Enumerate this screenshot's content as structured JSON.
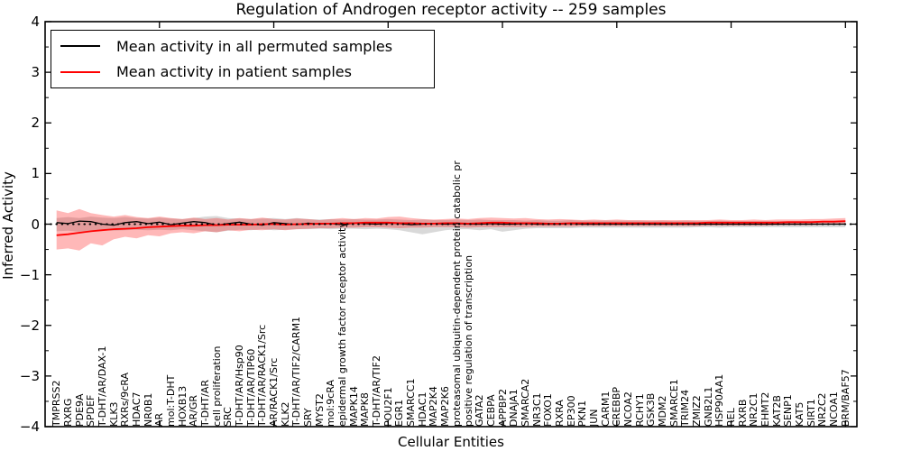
{
  "chart": {
    "title": "Regulation of Androgen receptor activity -- 259 samples",
    "xlabel": "Cellular Entities",
    "ylabel": "Inferred Activity"
  },
  "legend": {
    "items": [
      {
        "label": "Mean activity in all permuted samples",
        "color": "#000000"
      },
      {
        "label": "Mean activity in patient samples",
        "color": "#ff0000"
      }
    ]
  },
  "chart_data": {
    "type": "line",
    "title": "Regulation of Androgen receptor activity -- 259 samples",
    "xlabel": "Cellular Entities",
    "ylabel": "Inferred Activity",
    "ylim": [
      -4,
      4
    ],
    "xlim": [
      0,
      71
    ],
    "ytick_values": [
      4,
      3,
      2,
      1,
      0,
      -1,
      -2,
      -3,
      -4
    ],
    "ytick_labels": [
      "4",
      "3",
      "2",
      "1",
      "0",
      "−1",
      "−2",
      "−3",
      "−4"
    ],
    "xtick_positions": [
      10,
      20,
      30,
      40,
      50,
      60,
      70
    ],
    "zero_line": true,
    "legend_position": "upper left",
    "grid": false,
    "categories": [
      "TMPRSS2",
      "RXRG",
      "PDE9A",
      "SPDEF",
      "T-DHT/AR/DAX-1",
      "KLK3",
      "RXRs/9cRA",
      "HDAC7",
      "NR0B1",
      "AR",
      "mol:T-DHT",
      "HOXB13",
      "AR/GR",
      "T-DHT/AR",
      "cell proliferation",
      "SRC",
      "T-DHT/AR/Hsp90",
      "T-DHT/AR/TIP60",
      "T-DHT/AR/RACK1/Src",
      "AR/RACK1/Src",
      "KLK2",
      "T-DHT/AR/TIF2/CARM1",
      "SRY",
      "MYST2",
      "mol:9cRA",
      "epidermal growth factor receptor activity",
      "MAPK14",
      "MAPK8",
      "T-DHT/AR/TIF2",
      "POU2F1",
      "EGR1",
      "SMARCC1",
      "HDAC1",
      "MAP2K4",
      "MAP2K6",
      "proteasomal ubiquitin-dependent protein catabolic pr",
      "positive regulation of transcription",
      "GATA2",
      "CEBPA",
      "APPBP2",
      "DNAJA1",
      "SMARCA2",
      "NR3C1",
      "FOXO1",
      "RXRA",
      "EP300",
      "PKN1",
      "JUN",
      "CARM1",
      "CREBBP",
      "NCOA2",
      "RCHY1",
      "GSK3B",
      "MDM2",
      "SMARCE1",
      "TRIM24",
      "ZMIZ2",
      "GNB2L1",
      "HSP90AA1",
      "REL",
      "RXRB",
      "NR2C1",
      "EHMT2",
      "KAT2B",
      "SENP1",
      "KAT5",
      "SIRT1",
      "NR2C2",
      "NCOA1",
      "BRM/BAF57"
    ],
    "series": [
      {
        "name": "Mean activity in all permuted samples",
        "color": "#000000",
        "width": 1.3,
        "values": [
          0.03,
          0.01,
          0.06,
          0.05,
          0.0,
          -0.02,
          0.03,
          0.05,
          0.01,
          0.04,
          -0.01,
          0.02,
          0.05,
          0.03,
          -0.02,
          0.01,
          0.04,
          0.0,
          -0.02,
          0.03,
          0.01,
          -0.01,
          0.02,
          0.0,
          0.01,
          -0.01,
          0.02,
          0.01,
          0.0,
          0.02,
          0.01,
          -0.01,
          0.0,
          0.01,
          0.0,
          0.01,
          0.0,
          0.0,
          0.01,
          0.0,
          0.0,
          0.01,
          0.0,
          0.0,
          0.0,
          0.01,
          0.0,
          0.0,
          0.0,
          0.0,
          0.0,
          0.0,
          0.0,
          0.0,
          0.0,
          0.0,
          0.0,
          0.0,
          0.0,
          0.0,
          0.0,
          0.0,
          0.0,
          0.0,
          0.0,
          0.0,
          0.0,
          0.0,
          0.0,
          0.0
        ]
      },
      {
        "name": "Mean activity in patient samples",
        "color": "#ff0000",
        "width": 1.8,
        "values": [
          -0.22,
          -0.2,
          -0.17,
          -0.14,
          -0.12,
          -0.1,
          -0.09,
          -0.08,
          -0.06,
          -0.05,
          -0.04,
          -0.03,
          -0.03,
          -0.02,
          -0.02,
          -0.01,
          -0.01,
          -0.01,
          0.0,
          0.0,
          -0.01,
          0.0,
          0.0,
          0.01,
          0.01,
          0.02,
          0.02,
          0.03,
          0.03,
          0.03,
          0.02,
          0.02,
          0.01,
          0.01,
          0.02,
          0.02,
          0.01,
          0.02,
          0.03,
          0.03,
          0.02,
          0.02,
          0.02,
          0.01,
          0.01,
          0.02,
          0.02,
          0.02,
          0.02,
          0.02,
          0.02,
          0.02,
          0.02,
          0.02,
          0.02,
          0.02,
          0.02,
          0.03,
          0.03,
          0.03,
          0.03,
          0.03,
          0.03,
          0.03,
          0.04,
          0.04,
          0.04,
          0.05,
          0.05,
          0.06
        ]
      }
    ],
    "bands": [
      {
        "name": "permuted-samples-range",
        "color": "rgba(120,120,120,0.28)",
        "upper": [
          0.12,
          0.14,
          0.12,
          0.15,
          0.13,
          0.12,
          0.14,
          0.12,
          0.11,
          0.13,
          0.11,
          0.1,
          0.12,
          0.15,
          0.16,
          0.12,
          0.11,
          0.1,
          0.11,
          0.12,
          0.1,
          0.12,
          0.1,
          0.09,
          0.1,
          0.09,
          0.1,
          0.09,
          0.09,
          0.1,
          0.09,
          0.08,
          0.09,
          0.08,
          0.08,
          0.09,
          0.08,
          0.09,
          0.08,
          0.08,
          0.08,
          0.07,
          0.08,
          0.07,
          0.07,
          0.08,
          0.07,
          0.07,
          0.07,
          0.07,
          0.07,
          0.07,
          0.06,
          0.07,
          0.06,
          0.07,
          0.06,
          0.06,
          0.07,
          0.06,
          0.06,
          0.06,
          0.06,
          0.06,
          0.06,
          0.06,
          0.06,
          0.06,
          0.06,
          0.06
        ],
        "lower": [
          -0.14,
          -0.13,
          -0.15,
          -0.13,
          -0.12,
          -0.13,
          -0.12,
          -0.11,
          -0.12,
          -0.11,
          -0.12,
          -0.1,
          -0.12,
          -0.14,
          -0.16,
          -0.13,
          -0.11,
          -0.12,
          -0.1,
          -0.12,
          -0.11,
          -0.1,
          -0.1,
          -0.09,
          -0.1,
          -0.09,
          -0.09,
          -0.1,
          -0.09,
          -0.1,
          -0.12,
          -0.16,
          -0.2,
          -0.16,
          -0.12,
          -0.1,
          -0.1,
          -0.12,
          -0.1,
          -0.15,
          -0.12,
          -0.09,
          -0.08,
          -0.08,
          -0.08,
          -0.08,
          -0.07,
          -0.07,
          -0.07,
          -0.07,
          -0.07,
          -0.07,
          -0.07,
          -0.07,
          -0.07,
          -0.07,
          -0.06,
          -0.06,
          -0.07,
          -0.06,
          -0.06,
          -0.06,
          -0.06,
          -0.06,
          -0.06,
          -0.06,
          -0.06,
          -0.06,
          -0.06,
          -0.06
        ]
      },
      {
        "name": "patient-samples-range",
        "color": "rgba(255,0,0,0.28)",
        "upper": [
          0.27,
          0.22,
          0.3,
          0.22,
          0.18,
          0.15,
          0.18,
          0.14,
          0.12,
          0.15,
          0.12,
          0.1,
          0.13,
          0.1,
          0.12,
          0.09,
          0.12,
          0.1,
          0.13,
          0.1,
          0.09,
          0.11,
          0.1,
          0.08,
          0.1,
          0.12,
          0.1,
          0.12,
          0.11,
          0.14,
          0.15,
          0.12,
          0.1,
          0.09,
          0.1,
          0.11,
          0.1,
          0.12,
          0.13,
          0.12,
          0.11,
          0.12,
          0.1,
          0.09,
          0.1,
          0.09,
          0.08,
          0.09,
          0.08,
          0.09,
          0.08,
          0.08,
          0.08,
          0.08,
          0.08,
          0.08,
          0.08,
          0.08,
          0.09,
          0.08,
          0.08,
          0.09,
          0.08,
          0.09,
          0.09,
          0.09,
          0.1,
          0.1,
          0.11,
          0.12
        ],
        "lower": [
          -0.5,
          -0.48,
          -0.52,
          -0.38,
          -0.42,
          -0.3,
          -0.25,
          -0.28,
          -0.22,
          -0.24,
          -0.18,
          -0.16,
          -0.18,
          -0.14,
          -0.16,
          -0.12,
          -0.14,
          -0.11,
          -0.12,
          -0.1,
          -0.12,
          -0.1,
          -0.09,
          -0.08,
          -0.08,
          -0.07,
          -0.07,
          -0.06,
          -0.06,
          -0.07,
          -0.08,
          -0.07,
          -0.07,
          -0.06,
          -0.06,
          -0.06,
          -0.07,
          -0.06,
          -0.06,
          -0.06,
          -0.06,
          -0.06,
          -0.05,
          -0.05,
          -0.05,
          -0.05,
          -0.04,
          -0.04,
          -0.04,
          -0.04,
          -0.04,
          -0.04,
          -0.04,
          -0.04,
          -0.04,
          -0.04,
          -0.04,
          -0.03,
          -0.03,
          -0.03,
          -0.03,
          -0.03,
          -0.03,
          -0.02,
          -0.02,
          -0.02,
          -0.02,
          -0.01,
          0.0,
          0.01
        ]
      }
    ]
  }
}
